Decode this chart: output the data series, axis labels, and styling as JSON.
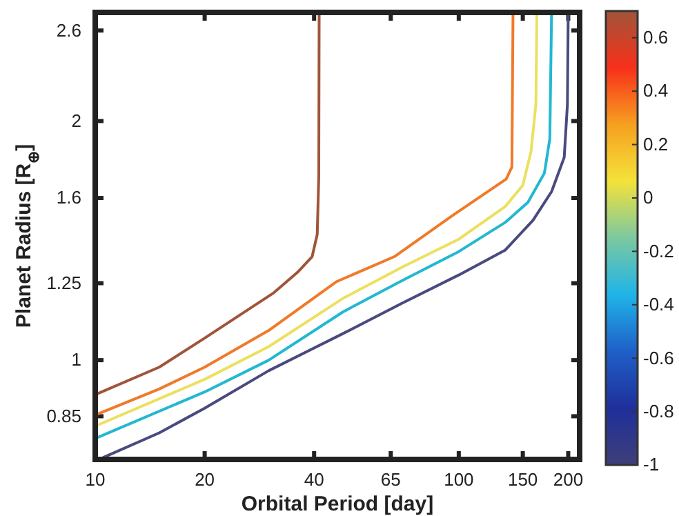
{
  "chart_data": {
    "type": "line",
    "xlabel": "Orbital Period [day]",
    "ylabel": "Planet Radius [R$_{⊕}$]",
    "log": "xy",
    "grid": false,
    "marker": "none",
    "line_style": "solid",
    "xlim": [
      10,
      215
    ],
    "xticks": [
      10,
      20,
      40,
      65,
      100,
      150,
      200
    ],
    "ylim": [
      0.75,
      2.74
    ],
    "yticks": [
      0.85,
      1,
      1.25,
      1.6,
      2,
      2.6
    ],
    "clim": [
      -1,
      0.7
    ],
    "cticks": [
      -1,
      -0.8,
      -0.6,
      -0.4,
      -0.2,
      0,
      0.2,
      0.4,
      0.6
    ],
    "series": [
      {
        "color": "#a0553a",
        "x": [
          10,
          15,
          20,
          25,
          31,
          36,
          39.5,
          40.8,
          41.2,
          41.3
        ],
        "values": [
          0.905,
          0.98,
          1.066,
          1.14,
          1.216,
          1.29,
          1.35,
          1.44,
          1.7,
          2.74
        ]
      },
      {
        "color": "#f07a2a",
        "x": [
          10,
          15,
          20,
          30,
          46,
          66.5,
          96,
          135,
          140,
          141
        ],
        "values": [
          0.853,
          0.92,
          0.98,
          1.09,
          1.255,
          1.35,
          1.52,
          1.69,
          1.75,
          2.74
        ]
      },
      {
        "color": "#ece060",
        "x": [
          10,
          20,
          30,
          48,
          70,
          100,
          134,
          150,
          158,
          163,
          164
        ],
        "values": [
          0.826,
          0.946,
          1.04,
          1.196,
          1.31,
          1.42,
          1.56,
          1.66,
          1.83,
          2.1,
          2.74
        ]
      },
      {
        "color": "#22b8d0",
        "x": [
          10,
          20,
          30,
          48,
          70,
          100,
          134,
          155,
          172,
          178,
          180
        ],
        "values": [
          0.797,
          0.912,
          1.0,
          1.15,
          1.26,
          1.37,
          1.49,
          1.58,
          1.72,
          1.9,
          2.74
        ]
      },
      {
        "color": "#4a4a7e",
        "x": [
          10.5,
          15,
          20,
          30,
          48,
          70,
          100,
          134,
          160,
          180,
          195,
          199,
          200
        ],
        "values": [
          0.754,
          0.81,
          0.87,
          0.97,
          1.08,
          1.18,
          1.28,
          1.375,
          1.5,
          1.63,
          1.8,
          2.1,
          2.74
        ]
      }
    ]
  }
}
